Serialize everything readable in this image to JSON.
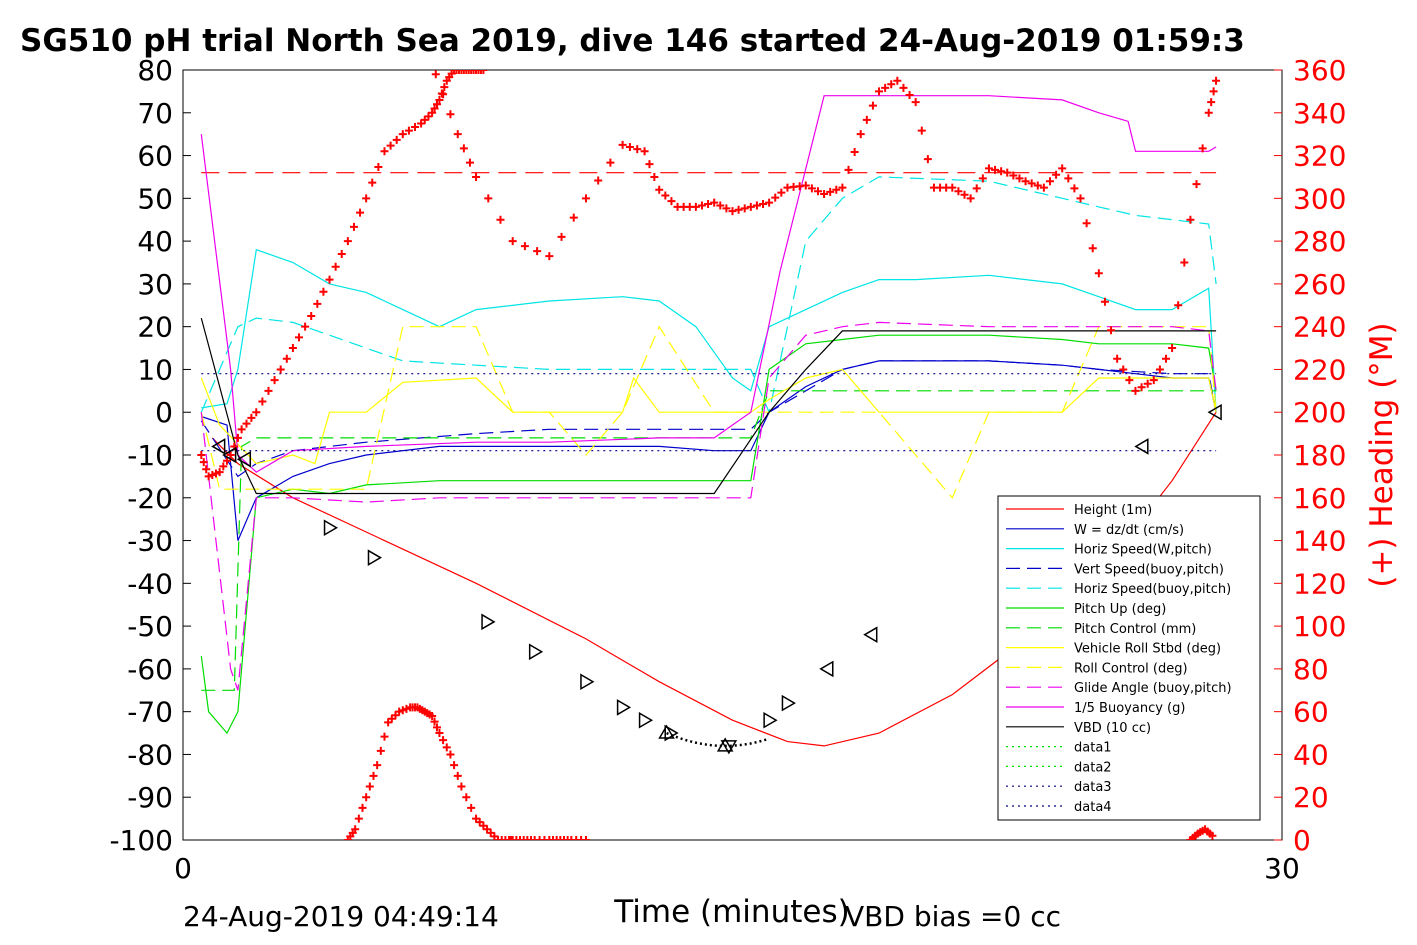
{
  "chart_data": {
    "type": "line",
    "title": "SG510 pH trial North Sea 2019, dive 146 started 24-Aug-2019 01:59:3",
    "xlabel": "Time (minutes)",
    "ylabel": "",
    "y2label": "(+) Heading (°M)",
    "xlim": [
      0,
      30
    ],
    "ylim": [
      -100,
      80
    ],
    "y2lim": [
      0,
      360
    ],
    "x_ticks": [
      "0",
      "30"
    ],
    "y_ticks": [
      "80",
      "70",
      "60",
      "50",
      "40",
      "30",
      "20",
      "10",
      "0",
      "-10",
      "-20",
      "-30",
      "-40",
      "-50",
      "-60",
      "-70",
      "-80",
      "-90",
      "-100"
    ],
    "y2_ticks": [
      "360",
      "340",
      "320",
      "300",
      "280",
      "260",
      "240",
      "220",
      "200",
      "180",
      "160",
      "140",
      "120",
      "100",
      "80",
      "60",
      "40",
      "20",
      "0"
    ],
    "footer_left": "24-Aug-2019 04:49:14",
    "footer_right": "VBD bias =0 cc",
    "legend_position": "lower-right",
    "colors": {
      "red": "#ff0000",
      "blue": "#0000cc",
      "cyan": "#00e5e5",
      "green": "#00dd00",
      "yellow": "#ffff00",
      "magenta": "#ee00ee",
      "black": "#000000"
    },
    "series": [
      {
        "name": "Height (1m)",
        "color": "#ff0000",
        "style": "solid",
        "x": [
          0.8,
          1.5,
          3,
          5,
          8,
          11,
          13,
          15,
          16.5,
          17.5,
          19,
          21,
          23,
          25,
          27,
          28.2
        ],
        "y": [
          -6,
          -12,
          -20,
          -28,
          -40,
          -53,
          -63,
          -72,
          -77,
          -78,
          -75,
          -66,
          -53,
          -38,
          -16,
          0
        ]
      },
      {
        "name": "W = dz/dt (cm/s)",
        "color": "#0000cc",
        "style": "solid",
        "x": [
          0.5,
          1.2,
          1.5,
          2,
          3,
          4,
          5,
          7,
          9,
          12,
          13,
          14.5,
          15.5,
          16,
          17,
          18,
          19,
          20,
          22,
          24,
          25,
          26,
          27,
          28,
          28.2
        ],
        "y": [
          -1,
          -3,
          -30,
          -20,
          -15,
          -12,
          -10,
          -8,
          -8,
          -8,
          -8,
          -9,
          -9,
          0,
          6,
          10,
          12,
          12,
          12,
          11,
          10,
          9,
          8,
          8,
          0
        ]
      },
      {
        "name": "Horiz Speed(W,pitch)",
        "color": "#00e5e5",
        "style": "solid",
        "x": [
          0.5,
          1.2,
          1.5,
          2,
          3,
          4,
          5,
          6,
          7,
          8,
          10,
          12,
          13,
          14,
          14.5,
          15,
          15.5,
          16,
          17,
          18,
          19,
          20,
          22,
          24,
          25,
          26,
          27,
          28,
          28.2
        ],
        "y": [
          1,
          2,
          10,
          38,
          35,
          30,
          28,
          24,
          20,
          24,
          26,
          27,
          26,
          20,
          14,
          8,
          5,
          20,
          24,
          28,
          31,
          31,
          32,
          30,
          27,
          24,
          24,
          29,
          0
        ]
      },
      {
        "name": "Vert Speed(buoy,pitch)",
        "color": "#0000cc",
        "style": "dashed",
        "x": [
          0.5,
          1.5,
          2,
          3,
          5,
          8,
          10,
          13,
          14.5,
          15.5,
          16,
          17,
          18,
          19,
          22,
          24,
          25,
          27,
          28,
          28.2
        ],
        "y": [
          -2,
          -15,
          -12,
          -9,
          -7,
          -5,
          -4,
          -4,
          -4,
          -4,
          0,
          5,
          10,
          12,
          12,
          11,
          10,
          9,
          9,
          0
        ]
      },
      {
        "name": "Horiz Speed(buoy,pitch)",
        "color": "#00e5e5",
        "style": "dashed",
        "x": [
          0.5,
          1.5,
          2,
          3,
          4,
          5,
          6,
          8,
          10,
          12,
          14.5,
          15.5,
          16,
          16.5,
          17,
          18,
          19,
          22,
          24,
          25,
          26,
          27,
          28,
          28.2
        ],
        "y": [
          0,
          20,
          22,
          21,
          18,
          15,
          12,
          11,
          10,
          10,
          10,
          10,
          0,
          20,
          40,
          50,
          55,
          54,
          50,
          48,
          46,
          45,
          44,
          30
        ]
      },
      {
        "name": "Pitch Up (deg)",
        "color": "#00dd00",
        "style": "solid",
        "x": [
          0.5,
          0.7,
          1.2,
          1.5,
          2,
          3,
          4,
          5,
          7,
          9,
          12,
          13,
          14.5,
          15,
          15.5,
          16,
          17,
          18,
          19,
          22,
          24,
          25,
          26,
          27,
          28,
          28.2
        ],
        "y": [
          -57,
          -70,
          -75,
          -70,
          -20,
          -18,
          -19,
          -17,
          -16,
          -16,
          -16,
          -16,
          -16,
          -16,
          -16,
          10,
          16,
          17,
          18,
          18,
          17,
          16,
          16,
          16,
          15,
          5
        ]
      },
      {
        "name": "Pitch Control (mm)",
        "color": "#00dd00",
        "style": "dashed",
        "x": [
          0.5,
          1.4,
          1.6,
          2,
          5,
          10,
          14.5,
          15.5,
          16,
          17,
          19,
          22,
          25,
          28,
          28.2
        ],
        "y": [
          -65,
          -65,
          -8,
          -6,
          -6,
          -6,
          -6,
          -6,
          5,
          5,
          5,
          5,
          5,
          5,
          5
        ]
      },
      {
        "name": "Vehicle Roll Stbd (deg)",
        "color": "#ffff00",
        "style": "solid",
        "x": [
          0.5,
          1,
          2,
          3,
          3.6,
          4,
          5,
          6,
          8,
          9,
          10,
          11,
          12,
          12.3,
          13,
          13.5,
          14,
          14.5,
          15.5,
          16,
          17,
          18,
          19,
          20,
          22,
          24,
          25,
          26,
          27,
          28,
          28.2
        ],
        "y": [
          8,
          -3,
          -12,
          -10,
          -12,
          0,
          0,
          7,
          8,
          0,
          0,
          0,
          0,
          8,
          0,
          0,
          0,
          0,
          0,
          3,
          8,
          10,
          0,
          0,
          0,
          0,
          8,
          8,
          8,
          8,
          0
        ]
      },
      {
        "name": "Roll Control (deg)",
        "color": "#ffff00",
        "style": "dashed",
        "x": [
          0.5,
          1,
          2,
          3,
          5,
          6,
          8,
          9,
          10,
          11,
          12,
          13,
          14.5,
          16,
          17,
          18,
          19,
          20,
          21,
          22,
          24,
          25,
          28,
          28.2
        ],
        "y": [
          0,
          -18,
          -18,
          -18,
          -18,
          20,
          20,
          0,
          0,
          -10,
          0,
          20,
          0,
          0,
          0,
          0,
          0,
          -10,
          -20,
          0,
          0,
          20,
          20,
          0
        ]
      },
      {
        "name": "Glide Angle (buoy,pitch)",
        "color": "#ee00ee",
        "style": "dashed",
        "x": [
          0.5,
          1.3,
          1.5,
          2,
          3,
          5,
          7,
          9,
          12,
          14.5,
          15.5,
          16,
          17,
          18,
          19,
          22,
          24,
          25,
          27,
          28,
          28.2
        ],
        "y": [
          0,
          -60,
          -65,
          -20,
          -20,
          -21,
          -20,
          -20,
          -20,
          -20,
          -20,
          8,
          18,
          20,
          21,
          20,
          20,
          20,
          20,
          19,
          5
        ]
      },
      {
        "name": "1/5 Buoyancy (g)",
        "color": "#ee00ee",
        "style": "solid",
        "x": [
          0.5,
          1.3,
          1.5,
          2,
          3,
          5,
          8,
          10,
          13,
          14.5,
          15.5,
          16.3,
          17.5,
          19,
          22,
          24,
          25,
          25.8,
          26,
          27,
          28,
          28.2
        ],
        "y": [
          65,
          10,
          -10,
          -14,
          -9,
          -8,
          -7,
          -7,
          -6,
          -6,
          0,
          33,
          74,
          74,
          74,
          73,
          70,
          68,
          61,
          61,
          61,
          62
        ]
      },
      {
        "name": "VBD (10 cc)",
        "color": "#000000",
        "style": "solid",
        "x": [
          0.5,
          1.5,
          2,
          14.5,
          16,
          17,
          18,
          28.2
        ],
        "y": [
          22,
          -10,
          -19,
          -19,
          0,
          10,
          19,
          19
        ]
      },
      {
        "name": "data1",
        "color": "#00dd00",
        "style": "dotted",
        "x": [],
        "y": []
      },
      {
        "name": "data2",
        "color": "#00dd00",
        "style": "dotted",
        "x": [],
        "y": []
      },
      {
        "name": "data3",
        "color": "#000080",
        "style": "dotted",
        "x": [
          0.5,
          28.2
        ],
        "y": [
          9,
          9
        ]
      },
      {
        "name": "data4",
        "color": "#000080",
        "style": "dotted",
        "x": [
          0.5,
          28.2
        ],
        "y": [
          -9,
          -9
        ]
      }
    ],
    "heading_reference": {
      "axis": "right",
      "value": 312,
      "color": "#ff0000",
      "style": "dashed"
    },
    "heading": {
      "axis": "right",
      "marker": "+",
      "color": "#ff0000",
      "segments": [
        {
          "x": [
            0.5,
            0.7,
            1,
            1.3,
            1.6,
            2,
            2.5,
            3,
            3.5,
            4,
            4.5,
            5,
            5.5,
            6,
            6.5,
            6.8,
            7,
            7.2,
            7.4,
            7.6,
            7.8,
            8,
            8.2
          ],
          "y": [
            180,
            170,
            172,
            180,
            192,
            200,
            215,
            230,
            245,
            262,
            280,
            300,
            322,
            330,
            335,
            340,
            346,
            355,
            360,
            360,
            360,
            360,
            360
          ]
        },
        {
          "x": [
            4.5,
            4.7,
            5,
            5.3,
            5.6,
            5.9,
            6.2,
            6.4,
            6.6,
            6.8,
            7,
            7.3,
            7.6,
            8,
            8.3,
            8.6,
            8.9,
            9,
            9.3,
            9.6,
            10,
            10.3,
            10.6,
            11
          ],
          "y": [
            0,
            5,
            20,
            35,
            55,
            60,
            62,
            62,
            60,
            58,
            50,
            40,
            25,
            10,
            5,
            0,
            0,
            0,
            0,
            0,
            0,
            0,
            0,
            0
          ]
        },
        {
          "x": [
            6.9,
            7.5,
            8,
            9,
            10,
            11,
            12,
            12.6,
            13,
            13.5,
            14,
            14.5,
            15,
            15.5,
            16,
            16.5,
            17,
            17.5,
            18,
            18.5,
            19,
            19.5,
            20,
            20.5,
            21,
            21.5,
            22,
            22.5,
            23,
            23.5,
            24,
            24.5,
            25,
            25.5,
            26,
            26.5,
            27,
            27.5,
            28,
            28.2
          ],
          "y": [
            358,
            330,
            310,
            280,
            273,
            300,
            325,
            322,
            304,
            296,
            296,
            298,
            294,
            296,
            298,
            305,
            306,
            302,
            305,
            330,
            350,
            355,
            345,
            305,
            305,
            300,
            314,
            312,
            308,
            305,
            314,
            300,
            265,
            225,
            210,
            215,
            230,
            290,
            340,
            355
          ]
        },
        {
          "x": [
            27.5,
            27.7,
            27.9,
            28.1
          ],
          "y": [
            0,
            3,
            5,
            2
          ]
        }
      ]
    },
    "direction_markers": {
      "color": "#000000",
      "points": [
        {
          "x": 1.0,
          "y": -8,
          "dir": "left"
        },
        {
          "x": 1.3,
          "y": -10,
          "dir": "left"
        },
        {
          "x": 1.7,
          "y": -11,
          "dir": "left"
        },
        {
          "x": 4.0,
          "y": -27,
          "dir": "right"
        },
        {
          "x": 5.2,
          "y": -34,
          "dir": "right"
        },
        {
          "x": 8.3,
          "y": -49,
          "dir": "right"
        },
        {
          "x": 9.6,
          "y": -56,
          "dir": "right"
        },
        {
          "x": 11.0,
          "y": -63,
          "dir": "right"
        },
        {
          "x": 12.0,
          "y": -69,
          "dir": "right"
        },
        {
          "x": 12.6,
          "y": -72,
          "dir": "right"
        },
        {
          "x": 13.2,
          "y": -75,
          "dir": "up"
        },
        {
          "x": 13.3,
          "y": -75,
          "dir": "right"
        },
        {
          "x": 14.8,
          "y": -78,
          "dir": "up"
        },
        {
          "x": 14.9,
          "y": -78,
          "dir": "down"
        },
        {
          "x": 16.0,
          "y": -72,
          "dir": "right"
        },
        {
          "x": 16.5,
          "y": -68,
          "dir": "right"
        },
        {
          "x": 17.6,
          "y": -60,
          "dir": "left"
        },
        {
          "x": 18.8,
          "y": -52,
          "dir": "left"
        },
        {
          "x": 26.2,
          "y": -8,
          "dir": "left"
        },
        {
          "x": 28.2,
          "y": 0,
          "dir": "left"
        }
      ]
    }
  }
}
